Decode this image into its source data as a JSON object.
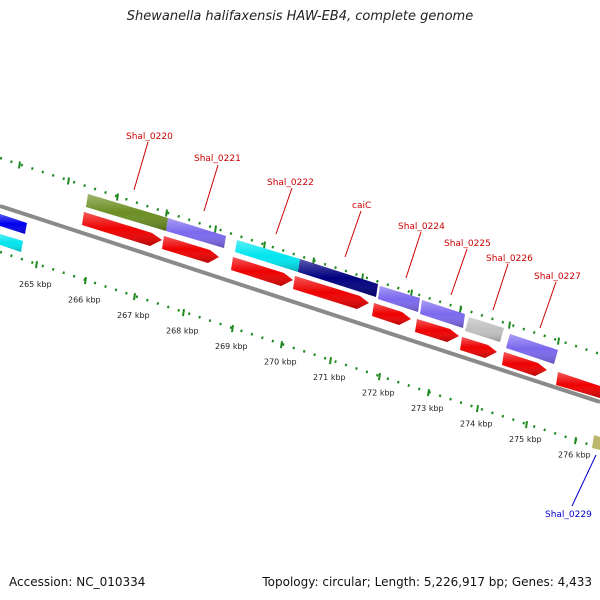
{
  "title": "Shewanella halifaxensis HAW-EB4, complete genome",
  "footer": {
    "accession": "Accession: NC_010334",
    "summary": "Topology: circular; Length: 5,226,917 bp; Genes: 4,433"
  },
  "colors": {
    "backbone": "#8a8a8a",
    "tick": "#1f8a1f",
    "label_red": "#cc0000",
    "label_blue": "#0000cc"
  },
  "ticks": [
    "265 kbp",
    "266 kbp",
    "267 kbp",
    "268 kbp",
    "269 kbp",
    "270 kbp",
    "271 kbp",
    "272 kbp",
    "273 kbp",
    "274 kbp",
    "275 kbp",
    "276 kbp"
  ],
  "genes": [
    {
      "label": "Shal_0220",
      "color": "#6b8e23"
    },
    {
      "label": "Shal_0221",
      "color": "#7b68ee"
    },
    {
      "label": "Shal_0222",
      "color": "#00e5ee"
    },
    {
      "label": "caiC",
      "color": "#000080"
    },
    {
      "label": "Shal_0224",
      "color": "#7b68ee"
    },
    {
      "label": "Shal_0225",
      "color": "#7b68ee"
    },
    {
      "label": "Shal_0226",
      "color": "#c0c0c0"
    },
    {
      "label": "Shal_0227",
      "color": "#7b68ee"
    },
    {
      "label": "Shal_0229",
      "color": "#bdb76b"
    }
  ]
}
